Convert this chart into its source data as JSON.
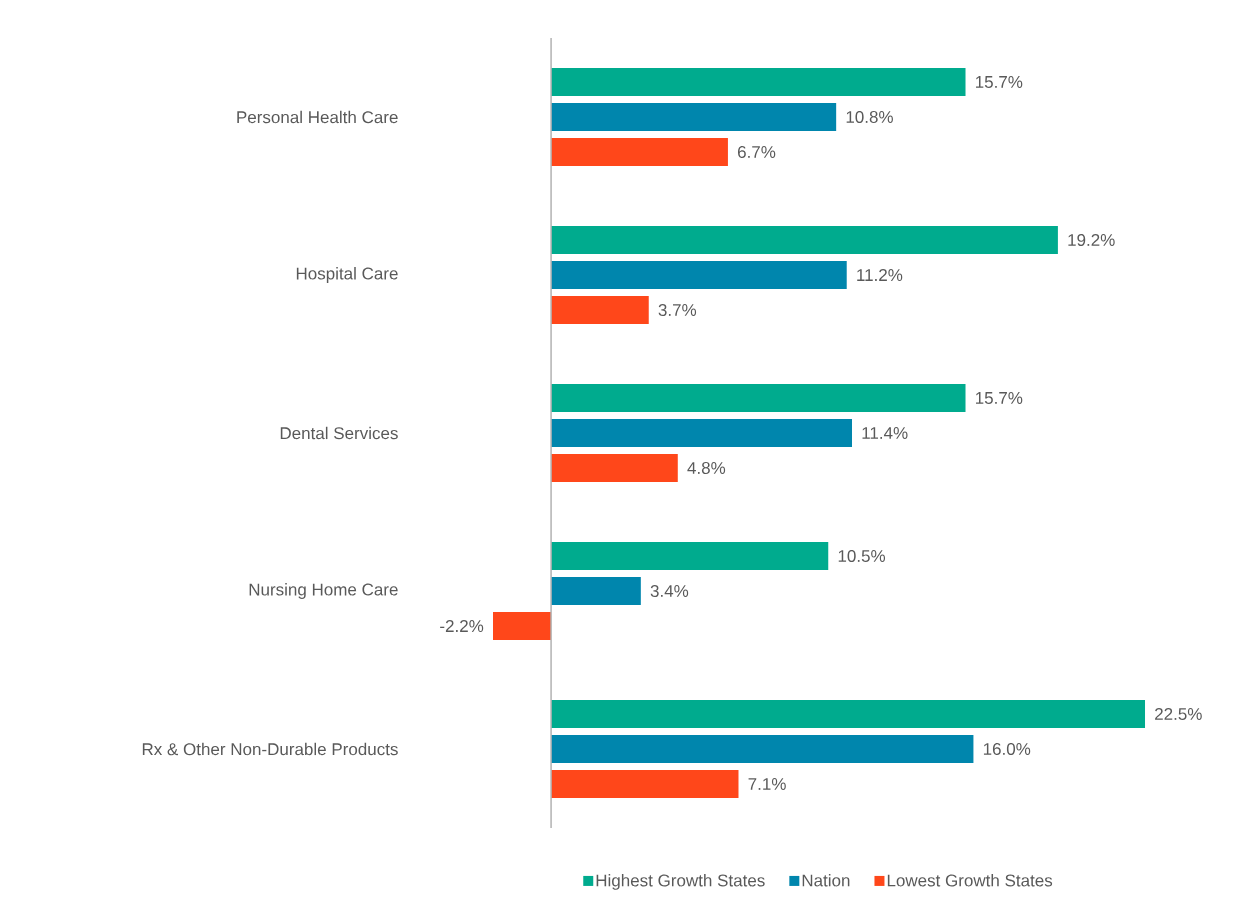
{
  "chart_data": {
    "type": "bar",
    "orientation": "horizontal",
    "categories": [
      "Personal Health Care",
      "Hospital Care",
      "Dental Services",
      "Nursing Home Care",
      "Rx & Other Non-Durable Products"
    ],
    "series": [
      {
        "name": "Highest Growth States",
        "color": "#00ab8e",
        "values": [
          15.7,
          19.2,
          15.7,
          10.5,
          22.5
        ],
        "value_labels": [
          "15.7%",
          "19.2%",
          "15.7%",
          "10.5%",
          "22.5%"
        ]
      },
      {
        "name": "Nation",
        "color": "#0086ad",
        "values": [
          10.8,
          11.2,
          11.4,
          3.4,
          16.0
        ],
        "value_labels": [
          "10.8%",
          "11.2%",
          "11.4%",
          "3.4%",
          "16.0%"
        ]
      },
      {
        "name": "Lowest Growth States",
        "color": "#ff471a",
        "values": [
          6.7,
          3.7,
          4.8,
          -2.2,
          7.1
        ],
        "value_labels": [
          "6.7%",
          "3.7%",
          "4.8%",
          "-2.2%",
          "7.1%"
        ]
      }
    ],
    "tick_labels": "y",
    "legend": "bottom"
  }
}
